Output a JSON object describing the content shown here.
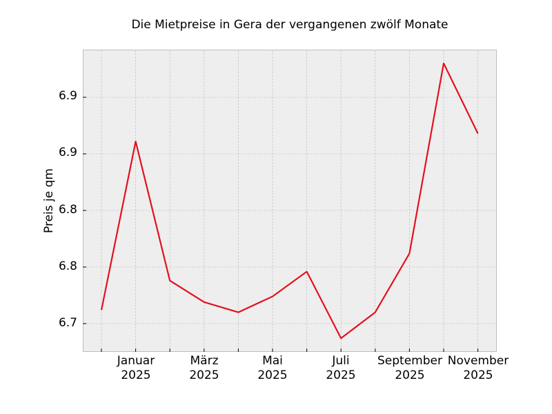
{
  "chart_data": {
    "type": "line",
    "title": "Die Mietpreise in Gera der vergangenen zwölf Monate",
    "xlabel": "",
    "ylabel": "Preis je qm",
    "x": [
      "Dezember 2024",
      "Januar 2025",
      "Februar 2025",
      "März 2025",
      "April 2025",
      "Mai 2025",
      "Juni 2025",
      "Juli 2025",
      "August 2025",
      "September 2025",
      "Oktober 2025",
      "November 2025"
    ],
    "series": [
      {
        "name": "Preis je qm",
        "color": "#e3101e",
        "values": [
          6.712,
          6.861,
          6.738,
          6.719,
          6.71,
          6.724,
          6.746,
          6.687,
          6.71,
          6.762,
          6.93,
          6.868
        ]
      }
    ],
    "y_ticks": [
      {
        "value": 6.7,
        "label": "6.7"
      },
      {
        "value": 6.75,
        "label": "6.8"
      },
      {
        "value": 6.8,
        "label": "6.8"
      },
      {
        "value": 6.85,
        "label": "6.9"
      },
      {
        "value": 6.9,
        "label": "6.9"
      }
    ],
    "x_tick_labels": [
      {
        "month": "Januar",
        "year": "2025"
      },
      {
        "month": "März",
        "year": "2025"
      },
      {
        "month": "Mai",
        "year": "2025"
      },
      {
        "month": "Juli",
        "year": "2025"
      },
      {
        "month": "September",
        "year": "2025"
      },
      {
        "month": "November",
        "year": "2025"
      }
    ],
    "ylim": [
      6.652,
      6.918
    ],
    "grid": true,
    "legend": "none",
    "background": "#eeeeee"
  }
}
